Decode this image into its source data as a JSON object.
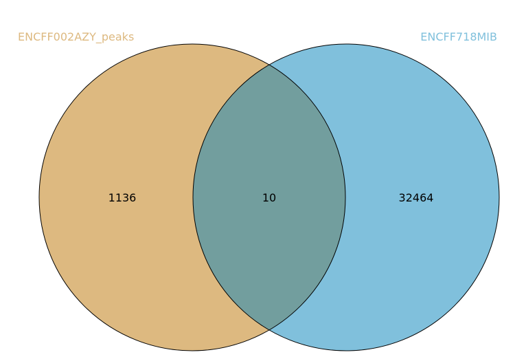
{
  "sets": [
    {
      "name": "ENCFF002AZY_peaks",
      "color": "#ddb980"
    },
    {
      "name": "ENCFF718MIB",
      "color": "#80c0dc"
    }
  ],
  "overlap_color": "#729e9e",
  "outline_color": "#000000",
  "counts": {
    "only_a": "1136",
    "both": "10",
    "only_b": "32464"
  }
}
